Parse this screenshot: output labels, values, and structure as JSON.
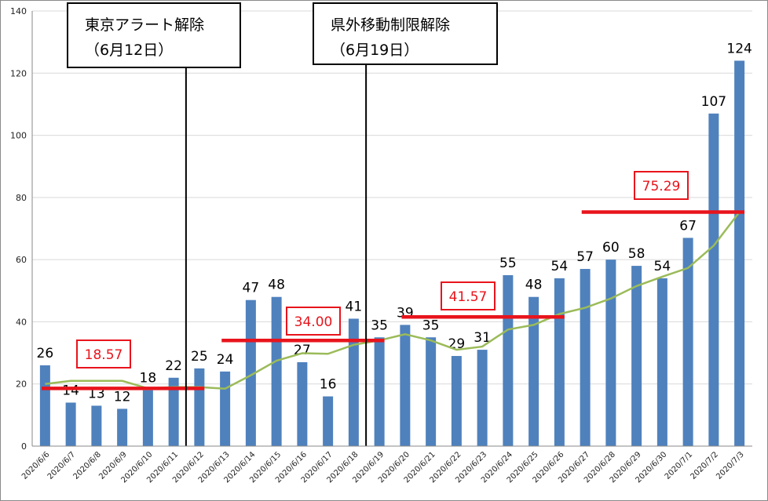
{
  "chart_data": {
    "type": "bar",
    "categories": [
      "2020/6/6",
      "2020/6/7",
      "2020/6/8",
      "2020/6/9",
      "2020/6/10",
      "2020/6/11",
      "2020/6/12",
      "2020/6/13",
      "2020/6/14",
      "2020/6/15",
      "2020/6/16",
      "2020/6/17",
      "2020/6/18",
      "2020/6/19",
      "2020/6/20",
      "2020/6/21",
      "2020/6/22",
      "2020/6/23",
      "2020/6/24",
      "2020/6/25",
      "2020/6/26",
      "2020/6/27",
      "2020/6/28",
      "2020/6/29",
      "2020/6/30",
      "2020/7/1",
      "2020/7/2",
      "2020/7/3"
    ],
    "values": [
      26,
      14,
      13,
      12,
      18,
      22,
      25,
      24,
      47,
      48,
      27,
      16,
      41,
      35,
      39,
      35,
      29,
      31,
      55,
      48,
      54,
      57,
      60,
      58,
      54,
      67,
      107,
      124
    ],
    "moving_average": [
      20,
      21,
      21,
      21,
      18.57,
      19,
      19,
      18.5,
      22.8,
      27.5,
      29.9,
      29.7,
      32.6,
      34,
      36,
      34,
      31,
      32,
      37.5,
      39,
      42.5,
      44.5,
      47.5,
      51.5,
      54.5,
      57.3,
      64.5,
      75.29
    ],
    "ylim": [
      0,
      140
    ],
    "yticks": [
      0,
      20,
      40,
      60,
      80,
      100,
      120,
      140
    ],
    "grid": true,
    "legend": "none",
    "period_means": [
      {
        "label": "18.57",
        "value": 18.57,
        "from": "2020/6/6",
        "to": "2020/6/12"
      },
      {
        "label": "34.00",
        "value": 34.0,
        "from": "2020/6/13",
        "to": "2020/6/19"
      },
      {
        "label": "41.57",
        "value": 41.57,
        "from": "2020/6/20",
        "to": "2020/6/26"
      },
      {
        "label": "75.29",
        "value": 75.29,
        "from": "2020/6/27",
        "to": "2020/7/3"
      }
    ],
    "events": [
      {
        "line1": "東京アラート解除",
        "line2": "（6月12日）",
        "date": "2020/6/12"
      },
      {
        "line1": "県外移動制限解除",
        "line2": "（6月19日）",
        "date": "2020/6/19"
      }
    ],
    "colors": {
      "bars": "#4f81bd",
      "moving_average": "#9bbb59",
      "period_mean": "#e8141c",
      "event": "#000000"
    }
  }
}
